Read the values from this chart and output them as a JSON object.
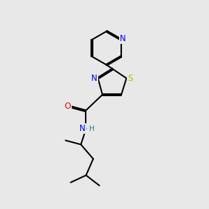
{
  "background_color": "#e8e8e8",
  "atom_colors": {
    "N": "#0000ee",
    "S": "#bbbb00",
    "O": "#ee0000",
    "C": "#000000",
    "H": "#008888"
  },
  "bond_color": "#000000",
  "bond_width": 1.5,
  "font_size_atoms": 8.5,
  "font_size_H": 7.5
}
